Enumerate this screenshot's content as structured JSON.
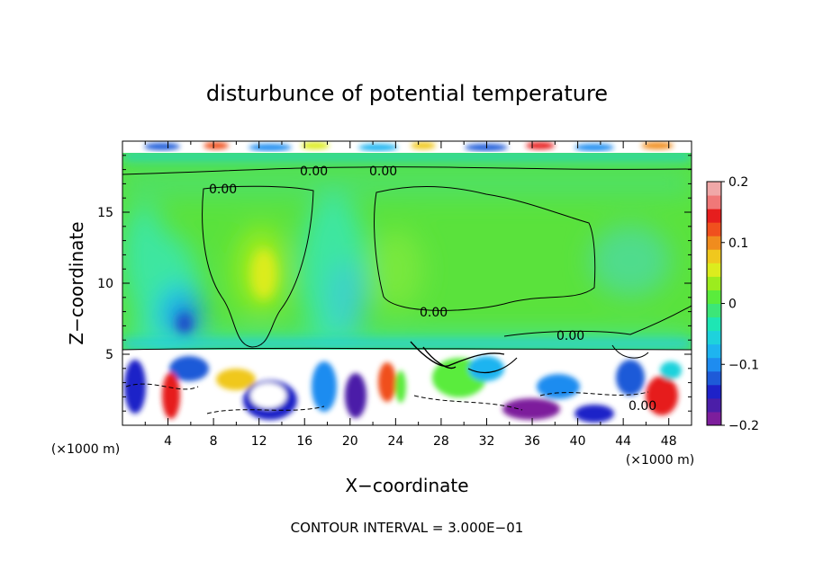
{
  "chart_data": {
    "type": "heatmap",
    "title": "disturbunce of potential temperature",
    "xlabel": "X−coordinate",
    "ylabel": "Z−coordinate",
    "x_unit": "(×1000 m)",
    "y_unit": "(×1000 m)",
    "xlim": [
      0,
      50
    ],
    "ylim": [
      0,
      20
    ],
    "x_ticks": [
      "4",
      "8",
      "12",
      "16",
      "20",
      "24",
      "28",
      "32",
      "36",
      "40",
      "44",
      "48"
    ],
    "y_ticks": [
      "5",
      "10",
      "15"
    ],
    "contour_labels": [
      "0.00",
      "0.00",
      "0.00",
      "0.00",
      "0.00",
      "0.00"
    ],
    "footnote": "CONTOUR INTERVAL = 3.000E−01",
    "colorbar": {
      "min": -0.2,
      "max": 0.2,
      "tick_labels": [
        "0.2",
        "0.1",
        "0",
        "−0.1",
        "−0.2"
      ],
      "colors": [
        "#7d1e9c",
        "#4b1ea8",
        "#1e22c8",
        "#1e5ad8",
        "#1e8cf0",
        "#1eb4f0",
        "#1ed2dc",
        "#1ee6b4",
        "#3ce678",
        "#5aec3c",
        "#9cec1e",
        "#dcec1e",
        "#f0c81e",
        "#f08c1e",
        "#f0501e",
        "#e61e1e",
        "#f07878",
        "#f0a8a8"
      ]
    }
  }
}
